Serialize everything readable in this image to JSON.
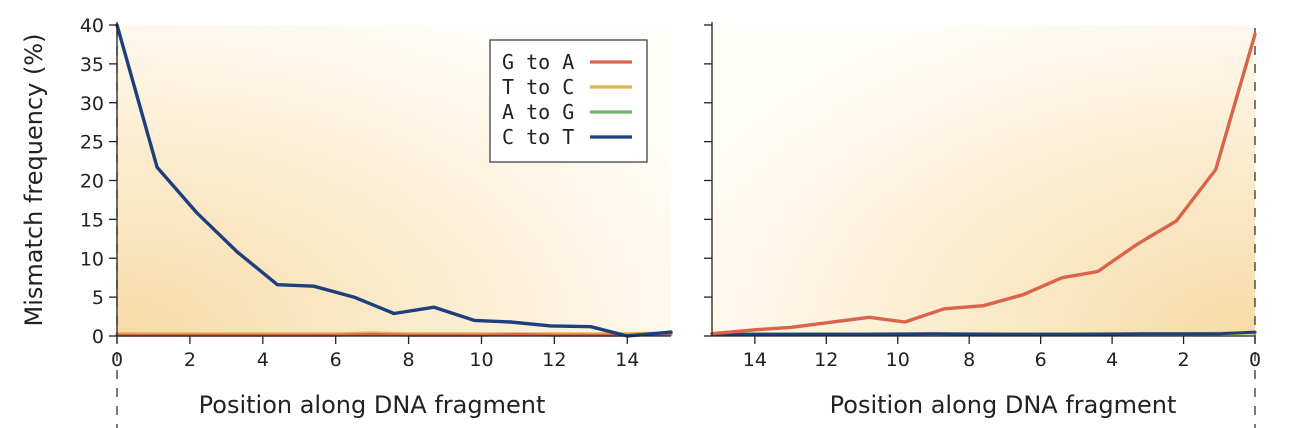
{
  "colors": {
    "g_to_a": "#d9644a",
    "t_to_c": "#e5b24a",
    "a_to_g": "#6db86a",
    "c_to_t": "#1e3f7c",
    "background_warm": "#f7dba6",
    "background_light": "#fffdf8"
  },
  "chart_data": [
    {
      "type": "line",
      "panel": "left",
      "xlabel": "Position along DNA fragment",
      "ylabel": "Mismatch frequency (%)",
      "xlim": [
        0,
        15.2
      ],
      "ylim": [
        0,
        40
      ],
      "xticks": [
        0,
        2,
        4,
        6,
        8,
        10,
        12,
        14
      ],
      "yticks": [
        0,
        5,
        10,
        15,
        20,
        25,
        30,
        35,
        40
      ],
      "x_reversed": false,
      "grid": false,
      "legend_position": "top-right",
      "series": [
        {
          "name": "G to A",
          "color_key": "g_to_a",
          "x": [
            0,
            1,
            2,
            3,
            4,
            5,
            6,
            7,
            8,
            9,
            10,
            11,
            12,
            13,
            14,
            15.2
          ],
          "y": [
            0.1,
            0.1,
            0.1,
            0.1,
            0.1,
            0.1,
            0.1,
            0.2,
            0.1,
            0.1,
            0.1,
            0.2,
            0.1,
            0.1,
            0.1,
            0.3
          ]
        },
        {
          "name": "T to C",
          "color_key": "t_to_c",
          "x": [
            0,
            1,
            2,
            3,
            4,
            5,
            6,
            7,
            8,
            9,
            10,
            11,
            12,
            13,
            14,
            15.2
          ],
          "y": [
            0.3,
            0.3,
            0.3,
            0.3,
            0.3,
            0.3,
            0.3,
            0.4,
            0.3,
            0.3,
            0.3,
            0.3,
            0.3,
            0.3,
            0.3,
            0.4
          ]
        },
        {
          "name": "A to G",
          "color_key": "a_to_g",
          "x": [
            0,
            1,
            2,
            3,
            4,
            5,
            6,
            7,
            8,
            9,
            10,
            11,
            12,
            13,
            14,
            15.2
          ],
          "y": [
            0.2,
            0.2,
            0.2,
            0.2,
            0.2,
            0.2,
            0.2,
            0.2,
            0.2,
            0.2,
            0.2,
            0.2,
            0.2,
            0.2,
            0.2,
            0.2
          ]
        },
        {
          "name": "C to T",
          "color_key": "c_to_t",
          "x": [
            0,
            1.1,
            2.2,
            3.3,
            4.4,
            5.4,
            6.5,
            7.6,
            8.7,
            9.8,
            10.8,
            11.9,
            13,
            14,
            15.2
          ],
          "y": [
            40,
            21.7,
            15.8,
            10.8,
            6.6,
            6.4,
            5,
            2.9,
            3.7,
            2.0,
            1.8,
            1.3,
            1.2,
            0,
            0.5
          ]
        }
      ]
    },
    {
      "type": "line",
      "panel": "right",
      "xlabel": "Position along DNA fragment",
      "xlim": [
        15.2,
        0
      ],
      "ylim": [
        0,
        40
      ],
      "xticks": [
        14,
        12,
        10,
        8,
        6,
        4,
        2,
        0
      ],
      "x_reversed": true,
      "grid": false,
      "series": [
        {
          "color_key": "g_to_a",
          "x": [
            15.2,
            14,
            13,
            12,
            10.8,
            9.8,
            8.7,
            7.6,
            6.5,
            5.4,
            4.4,
            3.3,
            2.2,
            1.1,
            0
          ],
          "y": [
            0.3,
            0.8,
            1.1,
            1.7,
            2.4,
            1.8,
            3.5,
            3.9,
            5.3,
            7.5,
            8.3,
            11.8,
            14.8,
            21.4,
            38.8
          ]
        },
        {
          "color_key": "t_to_c",
          "x": [
            15.2,
            12,
            8,
            4,
            2,
            0
          ],
          "y": [
            0.2,
            0.2,
            0.2,
            0.2,
            0.2,
            0.4
          ]
        },
        {
          "color_key": "a_to_g",
          "x": [
            15.2,
            12,
            8,
            4,
            2,
            0
          ],
          "y": [
            0.3,
            0.3,
            0.3,
            0.3,
            0.3,
            0.4
          ]
        },
        {
          "color_key": "c_to_t",
          "x": [
            15.2,
            13,
            11,
            9,
            7,
            5,
            3,
            1,
            0
          ],
          "y": [
            0.2,
            0.2,
            0.2,
            0.3,
            0.2,
            0.2,
            0.3,
            0.3,
            0.5
          ]
        }
      ]
    }
  ]
}
